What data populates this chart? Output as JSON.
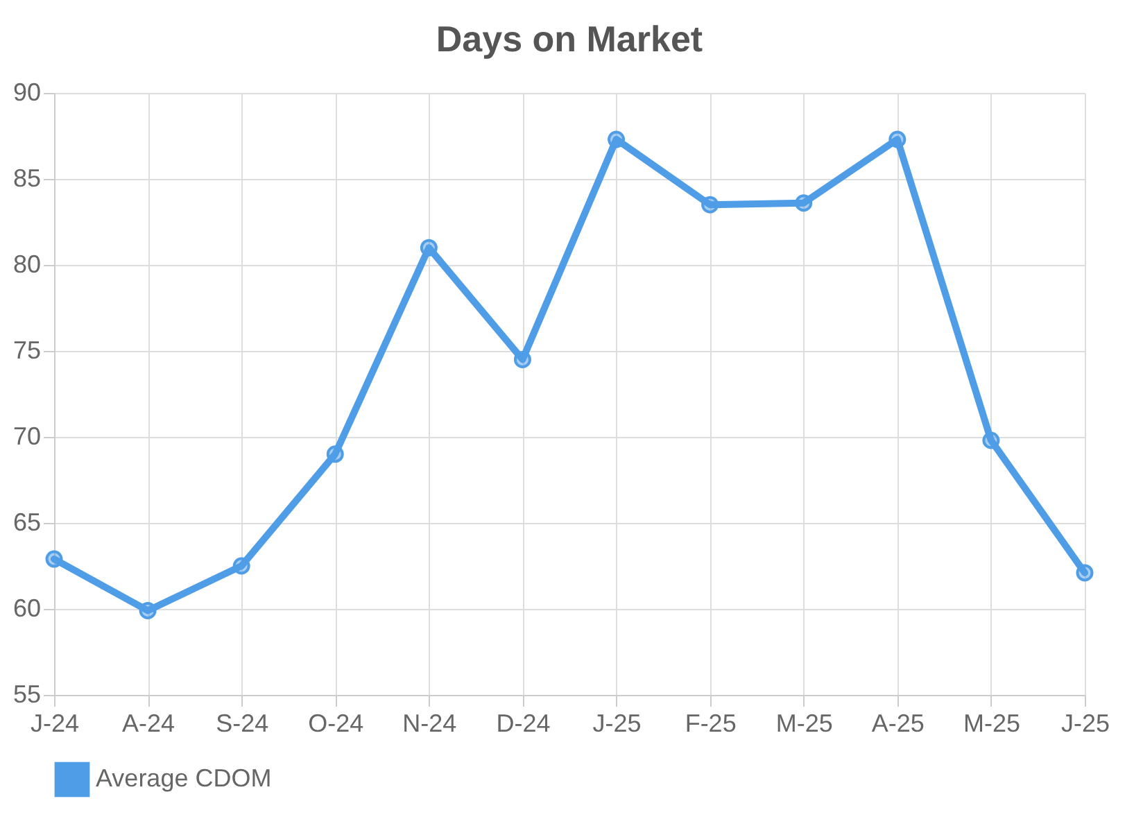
{
  "chart_data": {
    "type": "line",
    "title": "Days on Market",
    "categories": [
      "J-24",
      "A-24",
      "S-24",
      "O-24",
      "N-24",
      "D-24",
      "J-25",
      "F-25",
      "M-25",
      "A-25",
      "M-25",
      "J-25"
    ],
    "series": [
      {
        "name": "Average CDOM",
        "color": "#4f9de6",
        "values": [
          62.9,
          59.9,
          62.5,
          69.0,
          81.0,
          74.5,
          87.3,
          83.5,
          83.6,
          87.3,
          69.8,
          62.1
        ]
      }
    ],
    "ylim": [
      55,
      90
    ],
    "yticks": [
      55,
      60,
      65,
      70,
      75,
      80,
      85,
      90
    ],
    "grid": true,
    "legend": "bottom",
    "marker": "circle",
    "line_style": "solid"
  }
}
